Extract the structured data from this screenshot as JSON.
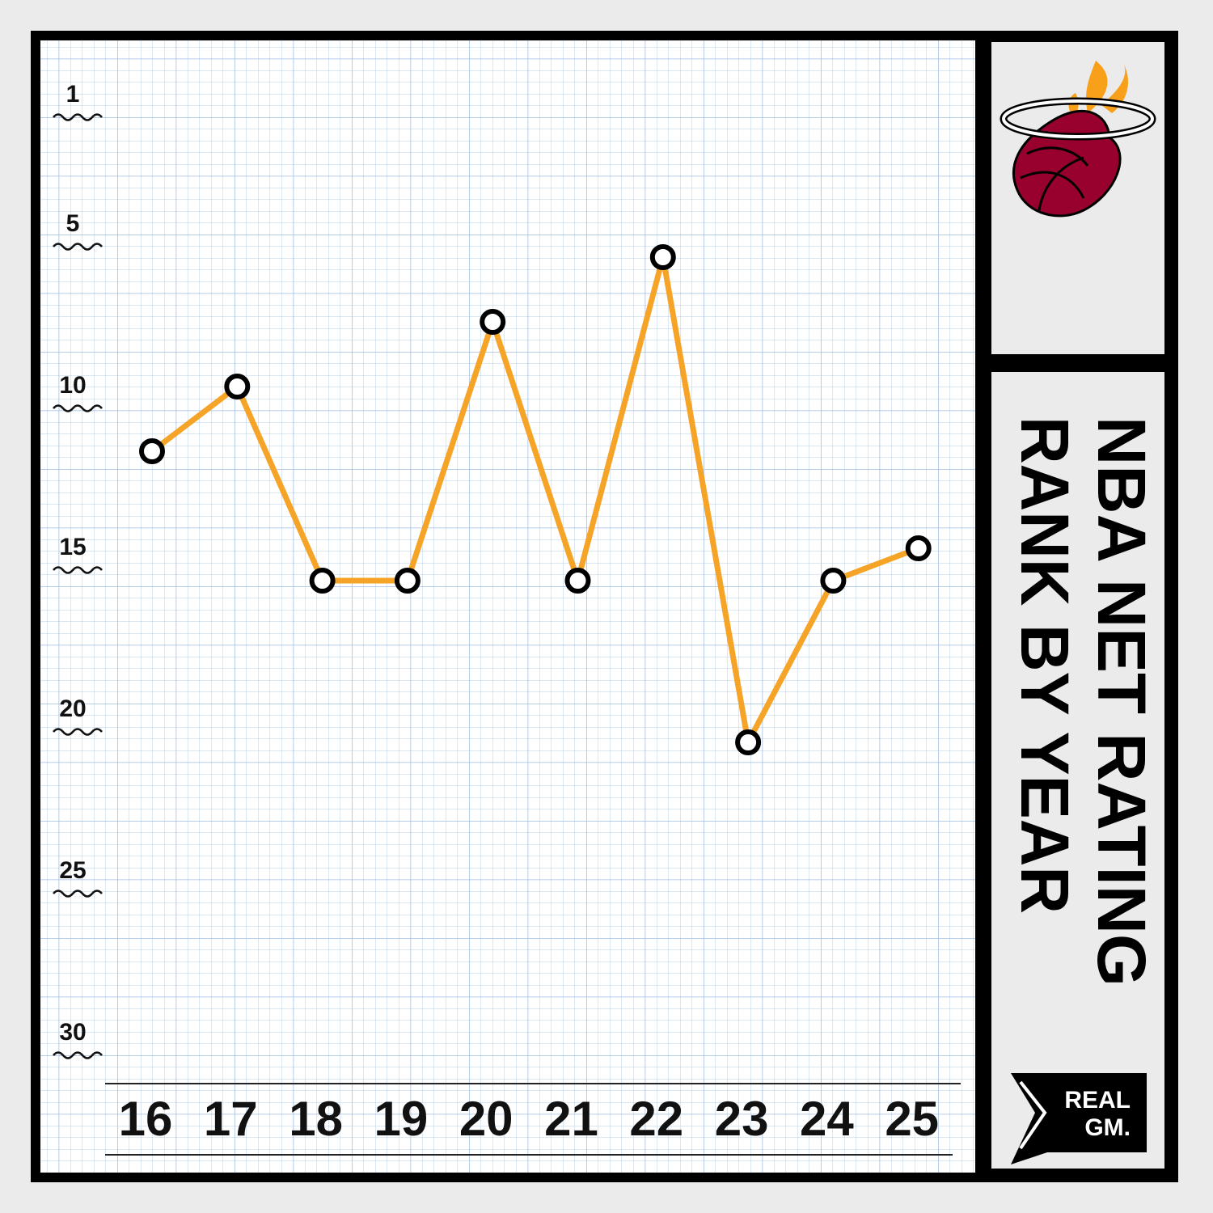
{
  "chart_data": {
    "type": "line",
    "title": "NBA NET RATING",
    "subtitle": "RANK BY YEAR",
    "categories": [
      "16",
      "17",
      "18",
      "19",
      "20",
      "21",
      "22",
      "23",
      "24",
      "25"
    ],
    "values": [
      12,
      10,
      16,
      16,
      8,
      16,
      6,
      21,
      16,
      15
    ],
    "color": "#f5a428",
    "ylim": [
      32,
      0
    ],
    "yticks": [
      1,
      5,
      10,
      15,
      20,
      25,
      30
    ]
  },
  "branding": {
    "lines": [
      "REAL",
      "GM."
    ]
  }
}
